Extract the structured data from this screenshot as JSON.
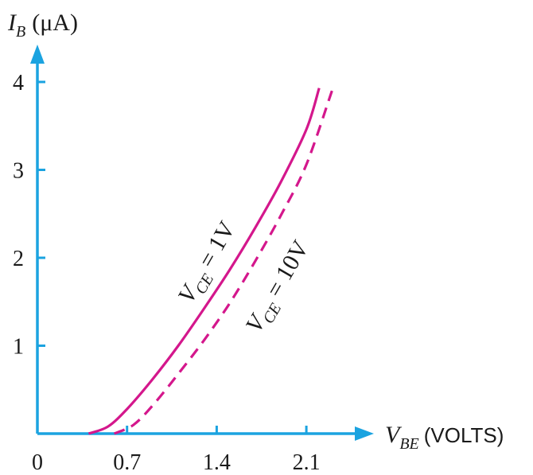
{
  "chart_data": {
    "type": "line",
    "title": "",
    "xlabel": {
      "symbol": "V",
      "subscript": "BE",
      "unit": "(VOLTS)"
    },
    "ylabel": {
      "symbol": "I",
      "subscript": "B",
      "unit": "(μA)"
    },
    "xlim": [
      0,
      2.5
    ],
    "ylim": [
      0,
      4.2
    ],
    "x_ticks": [
      0.7,
      1.4,
      2.1
    ],
    "x_tick_labels": [
      "0",
      "0.7",
      "1.4",
      "2.1"
    ],
    "y_ticks": [
      1,
      2,
      3,
      4
    ],
    "y_tick_labels": [
      "1",
      "2",
      "3",
      "4"
    ],
    "colors": {
      "axis": "#1ba3e0",
      "curve": "#d4178c",
      "text": "#1a1a1a"
    },
    "series": [
      {
        "name": "V_CE = 1V",
        "label": {
          "symbol": "V",
          "subscript": "CE",
          "rest": " = 1V"
        },
        "style": "solid",
        "x": [
          0.4,
          0.55,
          0.7,
          0.9,
          1.1,
          1.3,
          1.5,
          1.7,
          1.9,
          2.1,
          2.2
        ],
        "y": [
          0.0,
          0.08,
          0.28,
          0.62,
          1.0,
          1.42,
          1.86,
          2.34,
          2.86,
          3.46,
          3.93
        ]
      },
      {
        "name": "V_CE = 10V",
        "label": {
          "symbol": "V",
          "subscript": "CE",
          "rest": " = 10V"
        },
        "style": "dashed",
        "x": [
          0.6,
          0.75,
          0.9,
          1.1,
          1.3,
          1.5,
          1.7,
          1.9,
          2.1,
          2.3
        ],
        "y": [
          0.0,
          0.1,
          0.32,
          0.68,
          1.06,
          1.48,
          1.96,
          2.48,
          3.06,
          3.9
        ]
      }
    ]
  }
}
